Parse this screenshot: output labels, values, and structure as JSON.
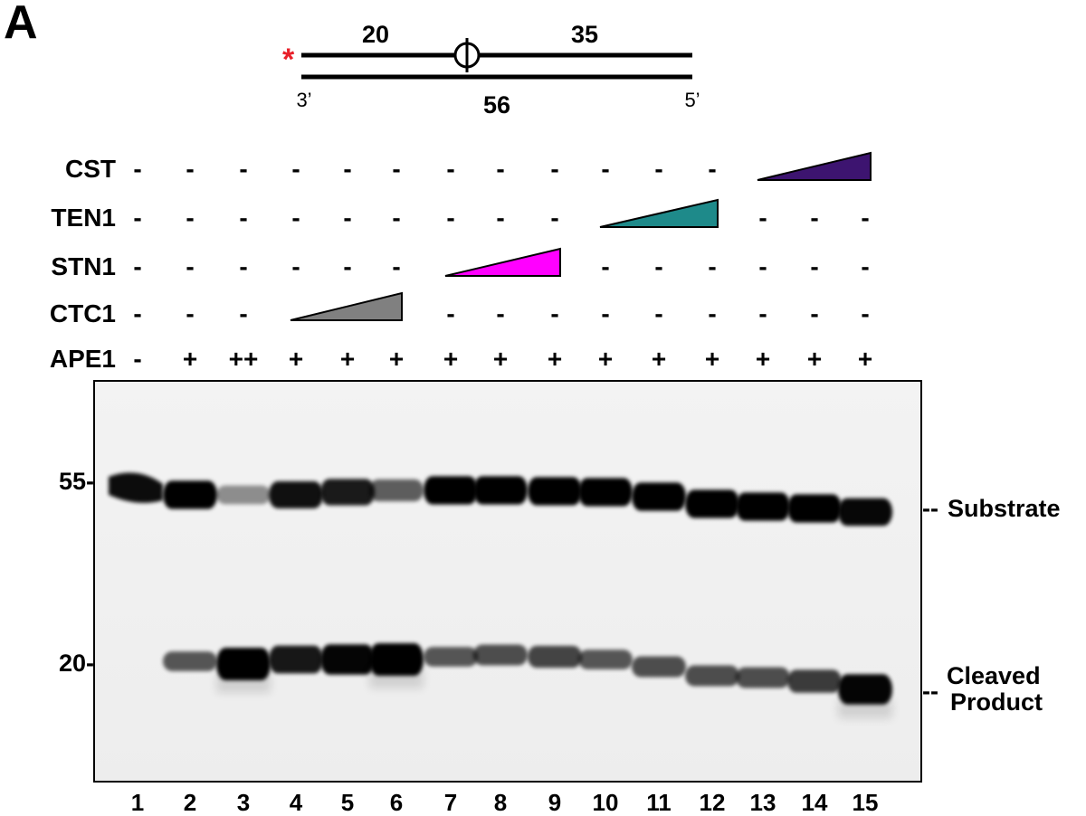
{
  "panel_label": "A",
  "substrate_diagram": {
    "top_left_length": "20",
    "top_right_length": "35",
    "lesion_symbol": "Φ",
    "label_marker": "*",
    "left_end": "3’",
    "right_end": "5’",
    "bottom_length": "56",
    "label_marker_color": "#e8202a"
  },
  "row_labels": [
    "CST",
    "TEN1",
    "STN1",
    "CTC1",
    "APE1"
  ],
  "conditions": {
    "CST": [
      "-",
      "-",
      "-",
      "-",
      "-",
      "-",
      "-",
      "-",
      "-",
      "-",
      "-",
      "-",
      "",
      "",
      ""
    ],
    "TEN1": [
      "-",
      "-",
      "-",
      "-",
      "-",
      "-",
      "-",
      "-",
      "-",
      "",
      "",
      "",
      "-",
      "-",
      "-"
    ],
    "STN1": [
      "-",
      "-",
      "-",
      "-",
      "-",
      "-",
      "",
      "",
      "",
      "-",
      "-",
      "-",
      "-",
      "-",
      "-"
    ],
    "CTC1": [
      "-",
      "-",
      "-",
      "",
      "",
      "",
      "-",
      "-",
      "-",
      "-",
      "-",
      "-",
      "-",
      "-",
      "-"
    ],
    "APE1": [
      "-",
      "+",
      "++",
      "+",
      "+",
      "+",
      "+",
      "+",
      "+",
      "+",
      "+",
      "+",
      "+",
      "+",
      "+"
    ]
  },
  "titrations": [
    {
      "row": "CTC1",
      "lanes": [
        4,
        6
      ],
      "color": "#808080"
    },
    {
      "row": "STN1",
      "lanes": [
        7,
        9
      ],
      "color": "#ff00ff"
    },
    {
      "row": "TEN1",
      "lanes": [
        10,
        12
      ],
      "color": "#1e8a8a"
    },
    {
      "row": "CST",
      "lanes": [
        13,
        15
      ],
      "color": "#3d1470"
    }
  ],
  "markers": [
    "55-",
    "20-"
  ],
  "band_labels": {
    "substrate": "Substrate",
    "product_line1": "Cleaved",
    "product_line2": "Product"
  },
  "lane_numbers": [
    "1",
    "2",
    "3",
    "4",
    "5",
    "6",
    "7",
    "8",
    "9",
    "10",
    "11",
    "12",
    "13",
    "14",
    "15"
  ],
  "band_intensity": {
    "substrate": [
      1.0,
      0.95,
      0.2,
      0.85,
      0.8,
      0.45,
      0.95,
      0.95,
      0.95,
      0.95,
      0.95,
      0.95,
      0.95,
      0.95,
      0.9
    ],
    "product": [
      0.0,
      0.45,
      1.0,
      0.8,
      0.9,
      1.0,
      0.45,
      0.5,
      0.55,
      0.45,
      0.5,
      0.5,
      0.5,
      0.6,
      0.9
    ]
  }
}
